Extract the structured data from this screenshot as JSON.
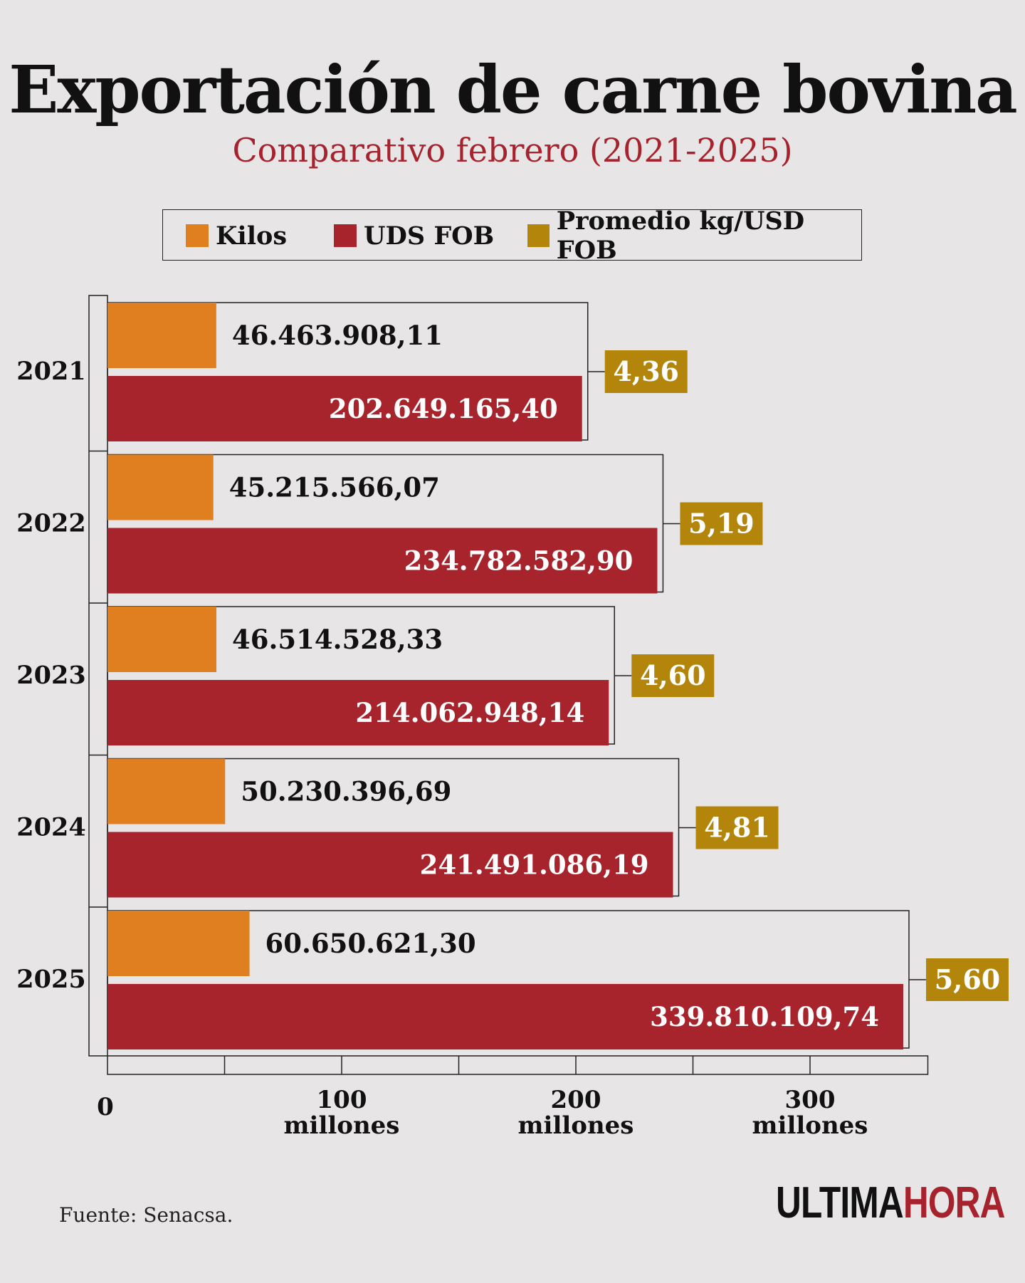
{
  "title": "Exportación de carne bovina",
  "subtitle": "Comparativo febrero (2021-2025)",
  "legend": [
    {
      "label": "Kilos",
      "color": "#e07f20"
    },
    {
      "label": "UDS FOB",
      "color": "#a8242d"
    },
    {
      "label": "Promedio kg/USD FOB",
      "color": "#b3860b"
    }
  ],
  "chart_data": {
    "type": "bar",
    "orientation": "horizontal",
    "categories": [
      "2021",
      "2022",
      "2023",
      "2024",
      "2025"
    ],
    "series": [
      {
        "name": "Kilos",
        "values": [
          46463908.11,
          45215566.07,
          46514528.33,
          50230396.69,
          60650621.3
        ],
        "labels": [
          "46.463.908,11",
          "45.215.566,07",
          "46.514.528,33",
          "50.230.396,69",
          "60.650.621,30"
        ]
      },
      {
        "name": "UDS FOB",
        "values": [
          202649165.4,
          234782582.9,
          214062948.14,
          241491086.19,
          339810109.74
        ],
        "labels": [
          "202.649.165,40",
          "234.782.582,90",
          "214.062.948,14",
          "241.491.086,19",
          "339.810.109,74"
        ]
      },
      {
        "name": "Promedio kg/USD FOB",
        "values": [
          4.36,
          5.19,
          4.6,
          4.81,
          5.6
        ],
        "labels": [
          "4,36",
          "5,19",
          "4,60",
          "4,81",
          "5,60"
        ]
      }
    ],
    "x_ticks": [
      {
        "value": 0,
        "label": "0",
        "sub": ""
      },
      {
        "value": 100000000,
        "label": "100",
        "sub": "millones"
      },
      {
        "value": 200000000,
        "label": "200",
        "sub": "millones"
      },
      {
        "value": 300000000,
        "label": "300",
        "sub": "millones"
      }
    ],
    "xlim": [
      0,
      350000000
    ]
  },
  "source": "Fuente: Senacsa.",
  "brand": {
    "part1": "ULTIMA",
    "part2": "HORA"
  }
}
